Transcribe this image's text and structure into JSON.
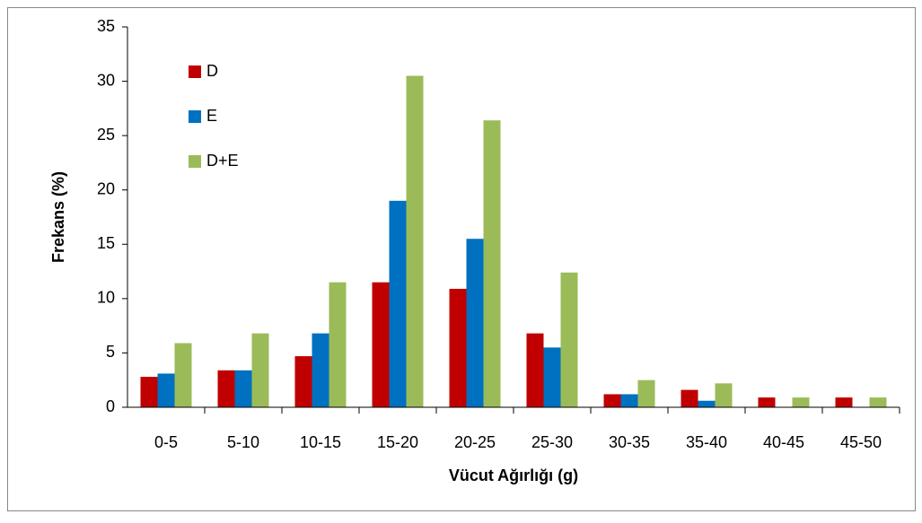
{
  "chart_data": {
    "type": "bar",
    "x_label": "Vücut Ağırlığı (g)",
    "y_label": "Frekans (%)",
    "categories": [
      "0-5",
      "5-10",
      "10-15",
      "15-20",
      "20-25",
      "25-30",
      "30-35",
      "35-40",
      "40-45",
      "45-50"
    ],
    "series": [
      {
        "name": "D",
        "color": "#c00000",
        "values": [
          2.8,
          3.4,
          4.7,
          11.5,
          10.9,
          6.8,
          1.2,
          1.6,
          0.9,
          0.9
        ]
      },
      {
        "name": "E",
        "color": "#0070c0",
        "values": [
          3.1,
          3.4,
          6.8,
          19.0,
          15.5,
          5.5,
          1.2,
          0.6,
          0,
          0
        ]
      },
      {
        "name": "D+E",
        "color": "#9bbb59",
        "values": [
          5.9,
          6.8,
          11.5,
          30.5,
          26.4,
          12.4,
          2.5,
          2.2,
          0.9,
          0.9
        ]
      }
    ],
    "ylim": [
      0,
      35
    ],
    "yticks": [
      0,
      5,
      10,
      15,
      20,
      25,
      30,
      35
    ],
    "grid": false,
    "legend": "top-left"
  }
}
